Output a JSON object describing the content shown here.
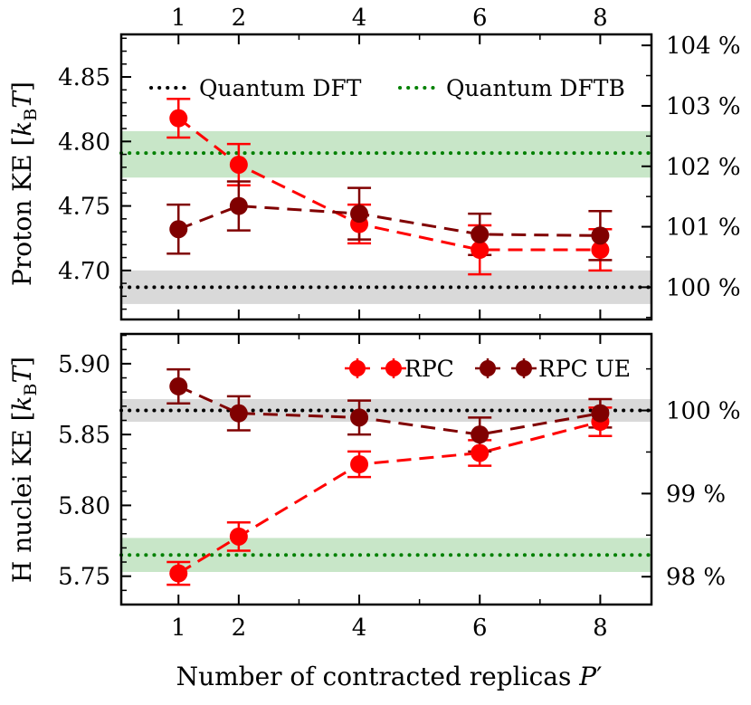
{
  "figure": {
    "xlabel_main": "Number of contracted replicas ",
    "xlabel_var": "P",
    "xlabel_prime": "′"
  },
  "colors": {
    "rpc": "#ff0000",
    "rpc_ue": "#800000",
    "dft": "#000000",
    "dftb": "#008000",
    "dft_band": "#d9d9d9",
    "dftb_band": "#c8e6c8"
  },
  "chart_data": [
    {
      "type": "line",
      "panel": "top",
      "ylabel_main": "Proton KE [",
      "ylabel_k": "k",
      "ylabel_sub": "B",
      "ylabel_T": "T",
      "ylabel_close": "]",
      "xlim": [
        0.05,
        8.85
      ],
      "ylim": [
        4.662,
        4.883
      ],
      "x": [
        1,
        2,
        4,
        6,
        8
      ],
      "x_tick_labels": [
        "1",
        "2",
        "4",
        "6",
        "8"
      ],
      "y_ticks": [
        4.7,
        4.75,
        4.8,
        4.85
      ],
      "y_tick_labels": [
        "4.70",
        "4.75",
        "4.80",
        "4.85"
      ],
      "right_axis": {
        "reference": 4.687,
        "ticks": [
          100,
          101,
          102,
          103,
          104
        ],
        "tick_labels": [
          "100 %",
          "101 %",
          "102 %",
          "103 %",
          "104 %"
        ]
      },
      "reference_lines": [
        {
          "name": "Quantum DFT",
          "value": 4.687,
          "band": [
            4.674,
            4.7
          ],
          "color_key": "dft"
        },
        {
          "name": "Quantum DFTB",
          "value": 4.791,
          "band": [
            4.772,
            4.808
          ],
          "color_key": "dftb"
        }
      ],
      "series": [
        {
          "name": "RPC",
          "color_key": "rpc",
          "values": [
            4.818,
            4.782,
            4.736,
            4.716,
            4.716
          ],
          "errors": [
            0.015,
            0.016,
            0.015,
            0.019,
            0.016
          ]
        },
        {
          "name": "RPC UE",
          "color_key": "rpc_ue",
          "values": [
            4.732,
            4.75,
            4.744,
            4.728,
            4.727
          ],
          "errors": [
            0.019,
            0.019,
            0.02,
            0.016,
            0.019
          ]
        }
      ]
    },
    {
      "type": "line",
      "panel": "bottom",
      "ylabel_main": "H nuclei KE [",
      "ylabel_k": "k",
      "ylabel_sub": "B",
      "ylabel_T": "T",
      "ylabel_close": "]",
      "xlim": [
        0.05,
        8.85
      ],
      "ylim": [
        5.73,
        5.921
      ],
      "x": [
        1,
        2,
        4,
        6,
        8
      ],
      "x_tick_labels": [
        "1",
        "2",
        "4",
        "6",
        "8"
      ],
      "y_ticks": [
        5.75,
        5.8,
        5.85,
        5.9
      ],
      "y_tick_labels": [
        "5.75",
        "5.80",
        "5.85",
        "5.90"
      ],
      "right_axis": {
        "reference": 5.867,
        "ticks": [
          98,
          99,
          100
        ],
        "tick_labels": [
          "98 %",
          "99 %",
          "100 %"
        ]
      },
      "reference_lines": [
        {
          "name": "Quantum DFT",
          "value": 5.867,
          "band": [
            5.859,
            5.875
          ],
          "color_key": "dft"
        },
        {
          "name": "Quantum DFTB",
          "value": 5.765,
          "band": [
            5.753,
            5.777
          ],
          "color_key": "dftb"
        }
      ],
      "series": [
        {
          "name": "RPC",
          "color_key": "rpc",
          "values": [
            5.752,
            5.778,
            5.829,
            5.837,
            5.859
          ],
          "errors": [
            0.008,
            0.01,
            0.009,
            0.009,
            0.01
          ]
        },
        {
          "name": "RPC UE",
          "color_key": "rpc_ue",
          "values": [
            5.884,
            5.865,
            5.862,
            5.85,
            5.865
          ],
          "errors": [
            0.012,
            0.012,
            0.012,
            0.012,
            0.01
          ]
        }
      ]
    }
  ]
}
